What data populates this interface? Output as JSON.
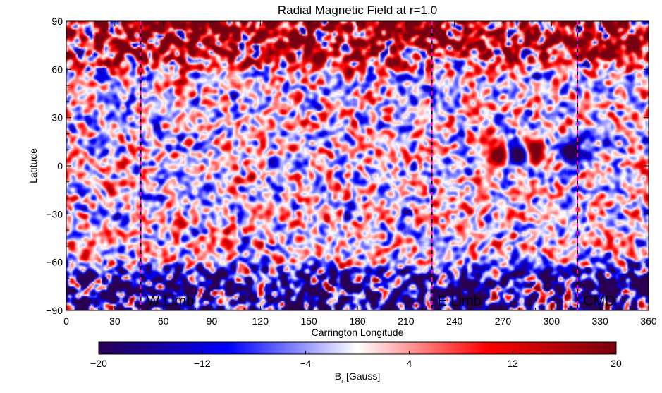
{
  "chart_data": {
    "type": "heatmap",
    "title": "Radial Magnetic Field at r=1.0",
    "xlabel": "Carrington Longitude",
    "ylabel": "Latitude",
    "xlim": [
      0,
      360
    ],
    "ylim": [
      -90,
      90
    ],
    "x_ticks": [
      0,
      30,
      60,
      90,
      120,
      150,
      180,
      210,
      240,
      270,
      300,
      330,
      360
    ],
    "y_ticks": [
      -90,
      -60,
      -30,
      0,
      30,
      60,
      90
    ],
    "y_tick_labels": [
      "−90",
      "−60",
      "−30",
      "0",
      "30",
      "60",
      "90"
    ],
    "colorbar": {
      "label_main": "B",
      "label_sub": "r",
      "label_units": " [Gauss]",
      "range": [
        -20,
        20
      ],
      "ticks": [
        -20,
        -12,
        -4,
        4,
        12,
        20
      ],
      "tick_labels": [
        "−20",
        "−12",
        "−4",
        "4",
        "12",
        "20"
      ],
      "colors": [
        "#2a0050",
        "#0000ff",
        "#ffffff",
        "#ff0000",
        "#780010"
      ]
    },
    "markers": [
      {
        "label": "W Limb",
        "longitude": 46,
        "color": "#ff00cc"
      },
      {
        "label": "E Limb",
        "longitude": 226,
        "color": "#ff00cc"
      },
      {
        "label": "CMD",
        "longitude": 316,
        "color": "#ff00cc"
      }
    ],
    "features": [
      {
        "name": "north polar positive band",
        "lat_range": [
          60,
          90
        ],
        "typical_Br": 15
      },
      {
        "name": "south polar negative band",
        "lat_range": [
          -90,
          -60
        ],
        "typical_Br": -15
      },
      {
        "name": "active region positive",
        "longitude": 268,
        "latitude": 7,
        "Br": 20
      },
      {
        "name": "active region positive",
        "longitude": 289,
        "latitude": 10,
        "Br": 20
      },
      {
        "name": "active region negative",
        "longitude": 279,
        "latitude": 7,
        "Br": -20
      },
      {
        "name": "active region negative",
        "longitude": 311,
        "latitude": 9,
        "Br": -20
      }
    ]
  }
}
